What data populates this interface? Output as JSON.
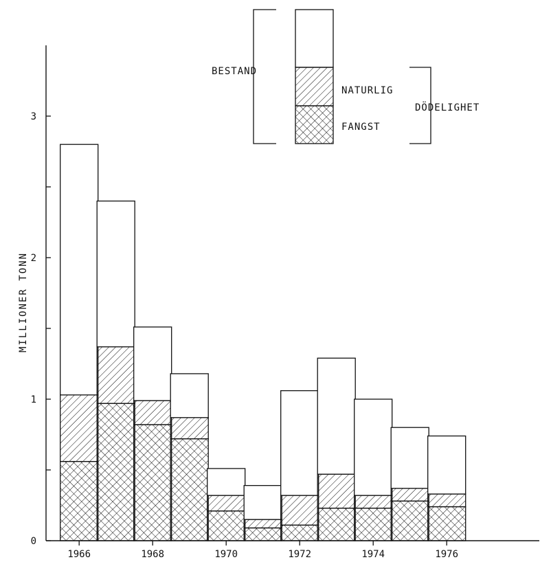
{
  "chart_data": {
    "type": "bar",
    "stacked": true,
    "title": "",
    "xlabel": "",
    "ylabel": "MILLIONER TONN",
    "categories": [
      "1966",
      "1967",
      "1968",
      "1969",
      "1970",
      "1971",
      "1972",
      "1973",
      "1974",
      "1975",
      "1976"
    ],
    "x_tick_labels": [
      "1966",
      "1968",
      "1970",
      "1972",
      "1974",
      "1976"
    ],
    "y_tick_labels": [
      "0",
      "1",
      "2",
      "3"
    ],
    "ylim": [
      0,
      3.5
    ],
    "xlim": [
      1965.8,
      1978.1
    ],
    "series": [
      {
        "name": "FANGST",
        "pattern": "crosshatch",
        "values": [
          0.56,
          0.97,
          0.82,
          0.72,
          0.21,
          0.09,
          0.11,
          0.23,
          0.23,
          0.28,
          0.24
        ]
      },
      {
        "name": "NATURLIG",
        "pattern": "diagonal",
        "values": [
          0.47,
          0.4,
          0.17,
          0.15,
          0.11,
          0.06,
          0.21,
          0.24,
          0.09,
          0.09,
          0.09
        ]
      },
      {
        "name": "BESTAND",
        "pattern": "blank",
        "values": [
          1.77,
          1.03,
          0.52,
          0.31,
          0.19,
          0.24,
          0.74,
          0.82,
          0.68,
          0.43,
          0.41
        ]
      }
    ],
    "totals": [
      2.8,
      2.4,
      1.51,
      1.18,
      0.51,
      0.39,
      1.06,
      1.29,
      1.0,
      0.8,
      0.74
    ],
    "legend": {
      "placement": "top-center",
      "bestand_label": "BESTAND",
      "naturlig_label": "NATURLIG",
      "fangst_label": "FANGST",
      "group_label": "DÖDELIGHET"
    },
    "grid": false
  },
  "colors": {
    "ink": "#111111",
    "background": "#ffffff"
  }
}
